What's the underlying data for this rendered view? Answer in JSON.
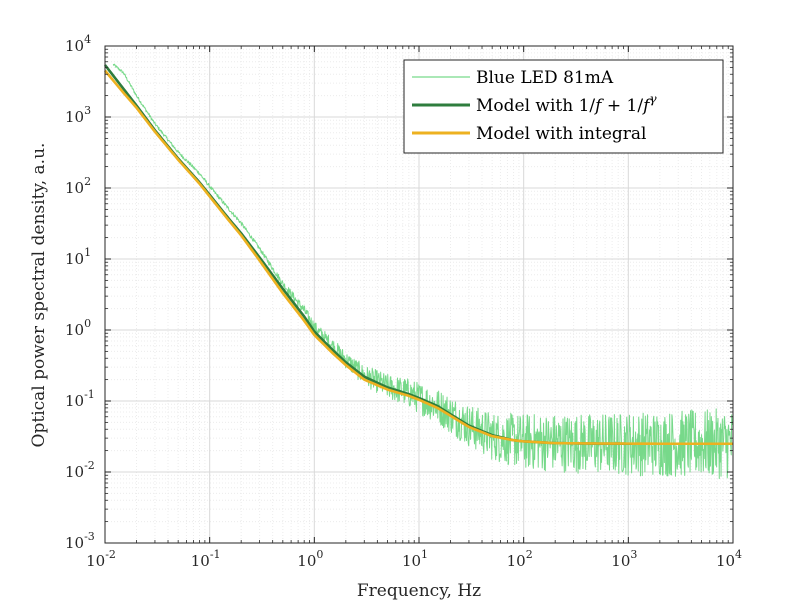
{
  "chart_data": {
    "type": "line",
    "xscale": "log",
    "yscale": "log",
    "xlim": [
      0.01,
      10000
    ],
    "ylim": [
      0.001,
      10000
    ],
    "xlabel": "Frequency, Hz",
    "ylabel": "Optical power spectral density,  a.u.",
    "grid": true,
    "minor_grid": true,
    "legend_position": "top-right",
    "x_ticks": [
      {
        "mant": "10",
        "exp": "-2"
      },
      {
        "mant": "10",
        "exp": "-1"
      },
      {
        "mant": "10",
        "exp": "0"
      },
      {
        "mant": "10",
        "exp": "1"
      },
      {
        "mant": "10",
        "exp": "2"
      },
      {
        "mant": "10",
        "exp": "3"
      },
      {
        "mant": "10",
        "exp": "4"
      }
    ],
    "y_ticks": [
      {
        "mant": "10",
        "exp": "-3"
      },
      {
        "mant": "10",
        "exp": "-2"
      },
      {
        "mant": "10",
        "exp": "-1"
      },
      {
        "mant": "10",
        "exp": "0"
      },
      {
        "mant": "10",
        "exp": "1"
      },
      {
        "mant": "10",
        "exp": "2"
      },
      {
        "mant": "10",
        "exp": "3"
      },
      {
        "mant": "10",
        "exp": "4"
      }
    ],
    "series": [
      {
        "name": "Blue LED 81mA",
        "color": "#77d98a",
        "noisy": true,
        "x": [
          0.012,
          0.015,
          0.02,
          0.03,
          0.05,
          0.08,
          0.1,
          0.15,
          0.2,
          0.3,
          0.5,
          0.8,
          1,
          1.5,
          2,
          3,
          5,
          8,
          10,
          15,
          20,
          30,
          50,
          80,
          100,
          200,
          500,
          1000,
          2000,
          5000,
          10000
        ],
        "y": [
          5500,
          4200,
          2000,
          800,
          320,
          160,
          105,
          52,
          32,
          14,
          4.5,
          1.9,
          1.1,
          0.6,
          0.38,
          0.23,
          0.16,
          0.13,
          0.11,
          0.085,
          0.065,
          0.045,
          0.032,
          0.028,
          0.027,
          0.026,
          0.025,
          0.025,
          0.025,
          0.025,
          0.025
        ]
      },
      {
        "name": "Model with 1/f + 1/f^γ",
        "color": "#2e7d3e",
        "noisy": false,
        "x": [
          0.01,
          0.015,
          0.02,
          0.03,
          0.05,
          0.08,
          0.1,
          0.15,
          0.2,
          0.3,
          0.5,
          0.8,
          1,
          1.5,
          2,
          3,
          5,
          8,
          10,
          15,
          20,
          30,
          50,
          80,
          100,
          200,
          500,
          1000,
          2000,
          5000,
          10000
        ],
        "y": [
          5400,
          2500,
          1450,
          650,
          260,
          120,
          80,
          38,
          23,
          10.5,
          3.8,
          1.55,
          0.95,
          0.52,
          0.35,
          0.22,
          0.155,
          0.125,
          0.11,
          0.085,
          0.065,
          0.045,
          0.033,
          0.028,
          0.027,
          0.0255,
          0.0251,
          0.025,
          0.025,
          0.025,
          0.025
        ]
      },
      {
        "name": "Model with integral",
        "color": "#edb120",
        "noisy": false,
        "x": [
          0.01,
          0.015,
          0.02,
          0.03,
          0.05,
          0.08,
          0.1,
          0.15,
          0.2,
          0.3,
          0.5,
          0.8,
          1,
          1.5,
          2,
          3,
          5,
          8,
          10,
          15,
          20,
          30,
          50,
          80,
          100,
          200,
          500,
          1000,
          2000,
          5000,
          10000
        ],
        "y": [
          4500,
          2200,
          1350,
          620,
          250,
          115,
          76,
          36,
          21.5,
          9.5,
          3.3,
          1.35,
          0.85,
          0.47,
          0.32,
          0.2,
          0.145,
          0.118,
          0.104,
          0.08,
          0.062,
          0.043,
          0.032,
          0.028,
          0.027,
          0.0255,
          0.0252,
          0.0251,
          0.025,
          0.025,
          0.025
        ]
      }
    ]
  },
  "legend": {
    "series1_label": "Blue LED 81mA",
    "series2_label_prefix": "Model with 1/",
    "series2_label_f1": "f",
    "series2_label_mid": " + 1/",
    "series2_label_f2": "f",
    "series2_label_sup": "γ",
    "series3_label": "Model with integral"
  }
}
